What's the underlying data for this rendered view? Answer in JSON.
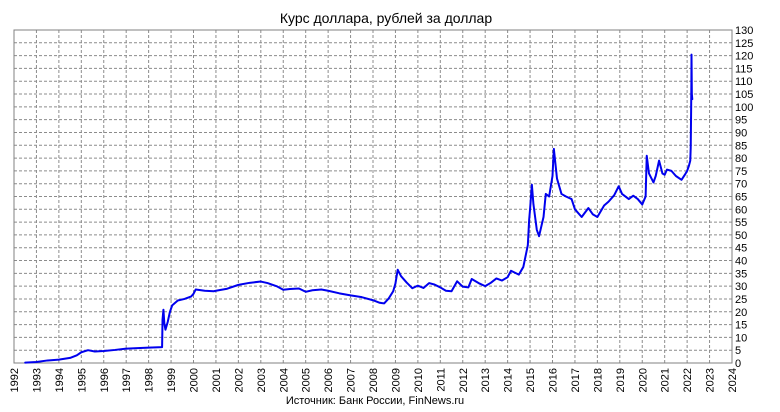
{
  "chart_data": {
    "type": "line",
    "title": "Курс доллара, рублей за доллар",
    "source_note": "Источник: Банк России, FinNews.ru",
    "xlabel": "",
    "ylabel": "",
    "xlim": [
      1992,
      2024
    ],
    "ylim": [
      0,
      130
    ],
    "x_ticks": [
      1992,
      1993,
      1994,
      1995,
      1996,
      1997,
      1998,
      1999,
      2000,
      2001,
      2002,
      2003,
      2004,
      2005,
      2006,
      2007,
      2008,
      2009,
      2010,
      2011,
      2012,
      2013,
      2014,
      2015,
      2016,
      2017,
      2018,
      2019,
      2020,
      2021,
      2022,
      2023,
      2024
    ],
    "y_ticks": [
      0,
      5,
      10,
      15,
      20,
      25,
      30,
      35,
      40,
      45,
      50,
      55,
      60,
      65,
      70,
      75,
      80,
      85,
      90,
      95,
      100,
      105,
      110,
      115,
      120,
      125,
      130
    ],
    "grid": true,
    "y_axis_side": "right",
    "series": [
      {
        "color": "#0000ee",
        "points": [
          [
            1992.5,
            0.13
          ],
          [
            1993.0,
            0.4
          ],
          [
            1993.5,
            1.0
          ],
          [
            1994.0,
            1.3
          ],
          [
            1994.5,
            2.0
          ],
          [
            1994.8,
            3.0
          ],
          [
            1995.0,
            4.2
          ],
          [
            1995.3,
            5.0
          ],
          [
            1995.6,
            4.5
          ],
          [
            1996.0,
            4.7
          ],
          [
            1996.5,
            5.1
          ],
          [
            1997.0,
            5.6
          ],
          [
            1997.5,
            5.8
          ],
          [
            1998.0,
            6.0
          ],
          [
            1998.6,
            6.2
          ],
          [
            1998.62,
            17.0
          ],
          [
            1998.66,
            20.8
          ],
          [
            1998.7,
            15.5
          ],
          [
            1998.75,
            13.0
          ],
          [
            1998.85,
            16.0
          ],
          [
            1998.95,
            20.0
          ],
          [
            1999.05,
            22.5
          ],
          [
            1999.3,
            24.4
          ],
          [
            1999.6,
            25.0
          ],
          [
            1999.9,
            26.0
          ],
          [
            2000.0,
            27.0
          ],
          [
            2000.1,
            28.7
          ],
          [
            2000.5,
            28.2
          ],
          [
            2000.9,
            28.0
          ],
          [
            2001.0,
            28.2
          ],
          [
            2001.5,
            29.0
          ],
          [
            2002.0,
            30.5
          ],
          [
            2002.5,
            31.3
          ],
          [
            2003.0,
            31.8
          ],
          [
            2003.3,
            31.2
          ],
          [
            2003.7,
            30.0
          ],
          [
            2004.0,
            28.6
          ],
          [
            2004.3,
            28.9
          ],
          [
            2004.7,
            29.1
          ],
          [
            2005.0,
            27.8
          ],
          [
            2005.3,
            28.4
          ],
          [
            2005.7,
            28.7
          ],
          [
            2006.0,
            28.2
          ],
          [
            2006.5,
            27.2
          ],
          [
            2007.0,
            26.4
          ],
          [
            2007.5,
            25.7
          ],
          [
            2008.0,
            24.5
          ],
          [
            2008.3,
            23.5
          ],
          [
            2008.5,
            23.3
          ],
          [
            2008.7,
            25.2
          ],
          [
            2008.9,
            28.0
          ],
          [
            2009.0,
            31.0
          ],
          [
            2009.1,
            36.4
          ],
          [
            2009.25,
            33.9
          ],
          [
            2009.5,
            31.4
          ],
          [
            2009.75,
            29.2
          ],
          [
            2010.0,
            30.2
          ],
          [
            2010.25,
            29.3
          ],
          [
            2010.5,
            31.2
          ],
          [
            2010.75,
            30.6
          ],
          [
            2011.0,
            29.5
          ],
          [
            2011.25,
            28.2
          ],
          [
            2011.5,
            28.0
          ],
          [
            2011.75,
            31.9
          ],
          [
            2012.0,
            29.8
          ],
          [
            2012.25,
            29.5
          ],
          [
            2012.4,
            32.8
          ],
          [
            2012.75,
            31.0
          ],
          [
            2013.0,
            30.0
          ],
          [
            2013.25,
            31.3
          ],
          [
            2013.5,
            33.0
          ],
          [
            2013.75,
            32.2
          ],
          [
            2014.0,
            33.5
          ],
          [
            2014.15,
            36.0
          ],
          [
            2014.5,
            34.5
          ],
          [
            2014.7,
            37.5
          ],
          [
            2014.9,
            46.0
          ],
          [
            2014.96,
            56.0
          ],
          [
            2015.0,
            60.0
          ],
          [
            2015.08,
            69.6
          ],
          [
            2015.15,
            62.0
          ],
          [
            2015.3,
            52.0
          ],
          [
            2015.4,
            49.5
          ],
          [
            2015.6,
            57.0
          ],
          [
            2015.7,
            66.0
          ],
          [
            2015.85,
            65.0
          ],
          [
            2016.0,
            73.0
          ],
          [
            2016.06,
            83.6
          ],
          [
            2016.2,
            72.0
          ],
          [
            2016.4,
            66.0
          ],
          [
            2016.6,
            65.0
          ],
          [
            2016.85,
            64.0
          ],
          [
            2017.0,
            60.0
          ],
          [
            2017.3,
            57.0
          ],
          [
            2017.6,
            60.5
          ],
          [
            2017.8,
            58.0
          ],
          [
            2018.0,
            57.0
          ],
          [
            2018.3,
            61.5
          ],
          [
            2018.5,
            63.0
          ],
          [
            2018.75,
            65.5
          ],
          [
            2018.95,
            69.0
          ],
          [
            2019.1,
            66.0
          ],
          [
            2019.4,
            64.0
          ],
          [
            2019.6,
            65.3
          ],
          [
            2019.8,
            64.0
          ],
          [
            2020.0,
            61.9
          ],
          [
            2020.15,
            65.0
          ],
          [
            2020.2,
            80.9
          ],
          [
            2020.3,
            74.0
          ],
          [
            2020.5,
            70.5
          ],
          [
            2020.6,
            73.0
          ],
          [
            2020.75,
            79.0
          ],
          [
            2020.9,
            74.0
          ],
          [
            2021.0,
            73.5
          ],
          [
            2021.1,
            75.5
          ],
          [
            2021.3,
            75.0
          ],
          [
            2021.5,
            73.0
          ],
          [
            2021.75,
            71.5
          ],
          [
            2021.9,
            73.5
          ],
          [
            2022.0,
            75.0
          ],
          [
            2022.08,
            77.0
          ],
          [
            2022.14,
            79.0
          ],
          [
            2022.16,
            84.0
          ],
          [
            2022.18,
            100.0
          ],
          [
            2022.19,
            110.0
          ],
          [
            2022.195,
            120.4
          ],
          [
            2022.21,
            105.0
          ],
          [
            2022.23,
            103.0
          ]
        ]
      }
    ]
  }
}
